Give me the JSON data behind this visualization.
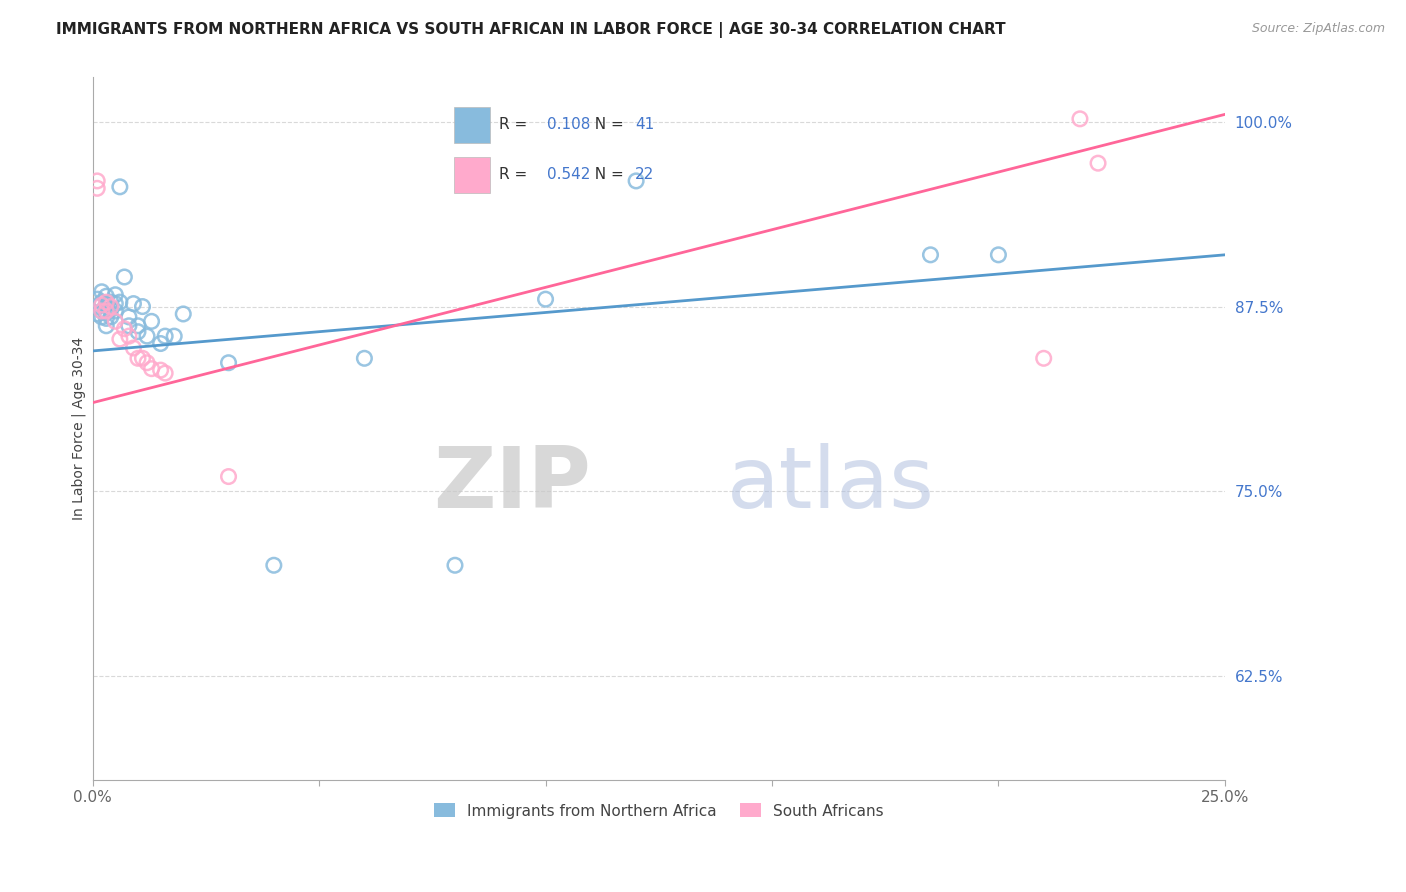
{
  "title": "IMMIGRANTS FROM NORTHERN AFRICA VS SOUTH AFRICAN IN LABOR FORCE | AGE 30-34 CORRELATION CHART",
  "source": "Source: ZipAtlas.com",
  "ylabel": "In Labor Force | Age 30-34",
  "xlim": [
    0.0,
    0.25
  ],
  "ylim": [
    0.555,
    1.03
  ],
  "xticks": [
    0.0,
    0.05,
    0.1,
    0.15,
    0.2,
    0.25
  ],
  "xtick_labels": [
    "0.0%",
    "",
    "",
    "",
    "",
    "25.0%"
  ],
  "yticks": [
    0.625,
    0.75,
    0.875,
    1.0
  ],
  "ytick_labels": [
    "62.5%",
    "75.0%",
    "87.5%",
    "100.0%"
  ],
  "blue_R": 0.108,
  "blue_N": 41,
  "pink_R": 0.542,
  "pink_N": 22,
  "blue_scatter_x": [
    0.001,
    0.001,
    0.001,
    0.002,
    0.002,
    0.002,
    0.002,
    0.003,
    0.003,
    0.003,
    0.003,
    0.003,
    0.004,
    0.004,
    0.004,
    0.005,
    0.005,
    0.005,
    0.006,
    0.006,
    0.007,
    0.008,
    0.008,
    0.009,
    0.01,
    0.01,
    0.011,
    0.012,
    0.013,
    0.015,
    0.016,
    0.018,
    0.02,
    0.03,
    0.04,
    0.06,
    0.08,
    0.1,
    0.12,
    0.185,
    0.2
  ],
  "blue_scatter_y": [
    0.88,
    0.875,
    0.87,
    0.885,
    0.878,
    0.872,
    0.868,
    0.882,
    0.876,
    0.871,
    0.867,
    0.862,
    0.878,
    0.873,
    0.868,
    0.883,
    0.877,
    0.872,
    0.956,
    0.878,
    0.895,
    0.868,
    0.862,
    0.877,
    0.862,
    0.858,
    0.875,
    0.855,
    0.865,
    0.85,
    0.855,
    0.855,
    0.87,
    0.837,
    0.7,
    0.84,
    0.7,
    0.88,
    0.96,
    0.91,
    0.91
  ],
  "pink_scatter_x": [
    0.001,
    0.001,
    0.002,
    0.002,
    0.003,
    0.003,
    0.004,
    0.005,
    0.006,
    0.007,
    0.008,
    0.009,
    0.01,
    0.011,
    0.012,
    0.013,
    0.015,
    0.016,
    0.03,
    0.21,
    0.218,
    0.222
  ],
  "pink_scatter_y": [
    0.96,
    0.955,
    0.876,
    0.872,
    0.878,
    0.872,
    0.875,
    0.865,
    0.853,
    0.86,
    0.855,
    0.847,
    0.84,
    0.84,
    0.837,
    0.833,
    0.832,
    0.83,
    0.76,
    0.84,
    1.002,
    0.972
  ],
  "blue_line_x": [
    0.0,
    0.25
  ],
  "blue_line_y": [
    0.845,
    0.91
  ],
  "pink_line_x": [
    0.0,
    0.25
  ],
  "pink_line_y": [
    0.81,
    1.005
  ],
  "watermark_zip": "ZIP",
  "watermark_atlas": "atlas",
  "background_color": "#ffffff",
  "grid_color": "#d0d0d0",
  "blue_color": "#88bbdd",
  "pink_color": "#ffaacc",
  "blue_line_color": "#5599cc",
  "pink_line_color": "#ff6699",
  "tick_color": "#4477cc",
  "title_fontsize": 11,
  "axis_label_fontsize": 10,
  "tick_fontsize": 11,
  "scatter_size": 110,
  "legend_label_blue": "Immigrants from Northern Africa",
  "legend_label_pink": "South Africans"
}
